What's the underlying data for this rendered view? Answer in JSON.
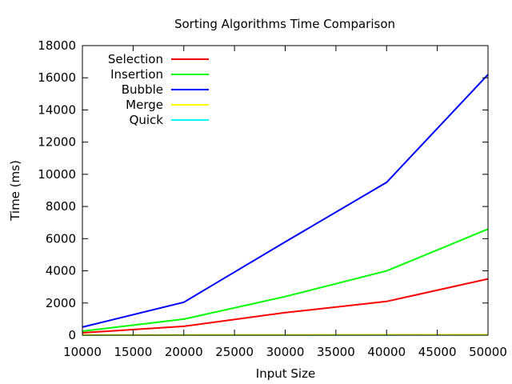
{
  "chart_data": {
    "type": "line",
    "title": "Sorting Algorithms Time Comparison",
    "xlabel": "Input Size",
    "ylabel": "Time (ms)",
    "xlim": [
      10000,
      50000
    ],
    "ylim": [
      0,
      18000
    ],
    "x_ticks": [
      "10000",
      "15000",
      "20000",
      "25000",
      "30000",
      "35000",
      "40000",
      "45000",
      "50000"
    ],
    "y_ticks": [
      "0",
      "2000",
      "4000",
      "6000",
      "8000",
      "10000",
      "12000",
      "14000",
      "16000",
      "18000"
    ],
    "grid": false,
    "legend_position": "top-left",
    "x": [
      10000,
      20000,
      30000,
      40000,
      50000
    ],
    "series": [
      {
        "name": "Selection",
        "color": "#ff0000",
        "values": [
          150,
          550,
          1400,
          2100,
          3500
        ]
      },
      {
        "name": "Insertion",
        "color": "#00ff00",
        "values": [
          250,
          1000,
          2400,
          4000,
          6600
        ]
      },
      {
        "name": "Bubble",
        "color": "#0000ff",
        "values": [
          500,
          2050,
          5800,
          9500,
          16200
        ]
      },
      {
        "name": "Merge",
        "color": "#ffff00",
        "values": [
          10,
          15,
          20,
          25,
          30
        ]
      },
      {
        "name": "Quick",
        "color": "#00ffff",
        "values": [
          5,
          8,
          12,
          15,
          20
        ]
      }
    ]
  }
}
